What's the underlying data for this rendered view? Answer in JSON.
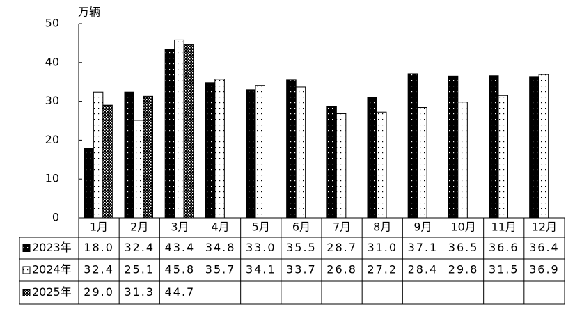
{
  "chart_data": {
    "type": "bar",
    "y_label": "万辆",
    "categories": [
      "1月",
      "2月",
      "3月",
      "4月",
      "5月",
      "6月",
      "7月",
      "8月",
      "9月",
      "10月",
      "11月",
      "12月"
    ],
    "series": [
      {
        "name": "2023年",
        "color": "#000000",
        "values": [
          18.0,
          32.4,
          43.4,
          34.8,
          33.0,
          35.5,
          28.7,
          31.0,
          37.1,
          36.5,
          36.6,
          36.4
        ],
        "value_labels": [
          "18.0",
          "32.4",
          "43.4",
          "34.8",
          "33.0",
          "35.5",
          "28.7",
          "31.0",
          "37.1",
          "36.5",
          "36.6",
          "36.4"
        ]
      },
      {
        "name": "2024年",
        "color": "#ffffff",
        "values": [
          32.4,
          25.1,
          45.8,
          35.7,
          34.1,
          33.7,
          26.8,
          27.2,
          28.4,
          29.8,
          31.5,
          36.9
        ],
        "value_labels": [
          "32.4",
          "25.1",
          "45.8",
          "35.7",
          "34.1",
          "33.7",
          "26.8",
          "27.2",
          "28.4",
          "29.8",
          "31.5",
          "36.9"
        ]
      },
      {
        "name": "2025年",
        "color": "#000000",
        "values": [
          29.0,
          31.3,
          44.7,
          null,
          null,
          null,
          null,
          null,
          null,
          null,
          null,
          null
        ],
        "value_labels": [
          "29.0",
          "31.3",
          "44.7",
          null,
          null,
          null,
          null,
          null,
          null,
          null,
          null,
          null
        ]
      }
    ],
    "ylim": [
      0,
      50
    ],
    "yticks": [
      0,
      10,
      20,
      30,
      40,
      50
    ],
    "grid": false
  }
}
